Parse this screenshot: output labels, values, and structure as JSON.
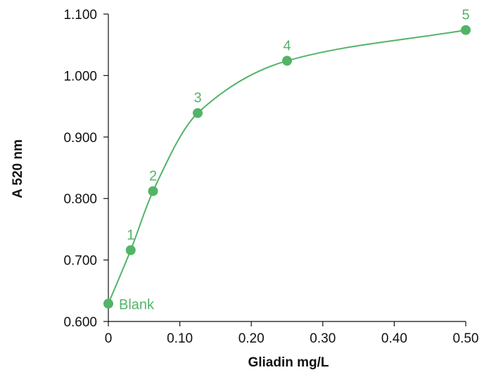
{
  "chart_data": {
    "type": "line",
    "title": "",
    "xlabel": "Gliadin mg/L",
    "ylabel": "A 520 nm",
    "xlim": [
      0,
      0.5
    ],
    "ylim": [
      0.6,
      1.1
    ],
    "x_ticks": [
      0,
      0.1,
      0.2,
      0.3,
      0.4,
      0.5
    ],
    "x_tick_labels": [
      "0",
      "0.10",
      "0.20",
      "0.30",
      "0.40",
      "0.50"
    ],
    "y_ticks": [
      0.6,
      0.7,
      0.8,
      0.9,
      1.0,
      1.1
    ],
    "y_tick_labels": [
      "0.600",
      "0.700",
      "0.800",
      "0.900",
      "1.000",
      "1.100"
    ],
    "grid": false,
    "smooth": true,
    "series": [
      {
        "color": "#52b467",
        "points": [
          {
            "x": 0,
            "y": 0.629,
            "label": "Blank",
            "label_side": "right"
          },
          {
            "x": 0.03125,
            "y": 0.716,
            "label": "1",
            "label_side": "above"
          },
          {
            "x": 0.0625,
            "y": 0.812,
            "label": "2",
            "label_side": "above"
          },
          {
            "x": 0.125,
            "y": 0.939,
            "label": "3",
            "label_side": "above"
          },
          {
            "x": 0.25,
            "y": 1.024,
            "label": "4",
            "label_side": "above"
          },
          {
            "x": 0.5,
            "y": 1.074,
            "label": "5",
            "label_side": "above"
          }
        ]
      }
    ]
  }
}
